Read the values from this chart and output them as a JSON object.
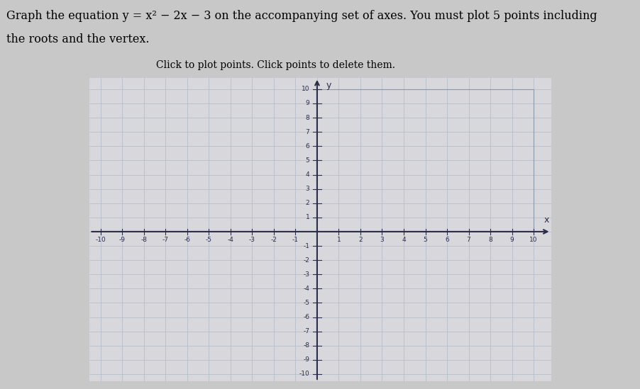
{
  "title_line1": "Graph the equation y = x² − 2x − 3 on the accompanying set of axes. You must plot 5 points including",
  "title_line2": "the roots and the vertex.",
  "subtitle": "Click to plot points. Click points to delete them.",
  "xlabel": "x",
  "ylabel": "y",
  "xlim": [
    -10.5,
    10.8
  ],
  "ylim": [
    -10.5,
    10.8
  ],
  "xticks": [
    -10,
    -9,
    -8,
    -7,
    -6,
    -5,
    -4,
    -3,
    -2,
    -1,
    1,
    2,
    3,
    4,
    5,
    6,
    7,
    8,
    9,
    10
  ],
  "yticks": [
    -10,
    -9,
    -8,
    -7,
    -6,
    -5,
    -4,
    -3,
    -2,
    -1,
    1,
    2,
    3,
    4,
    5,
    6,
    7,
    8,
    9,
    10
  ],
  "grid_color": "#b0b8c8",
  "axis_color": "#2b2b4b",
  "background_color": "#c8c8c8",
  "plot_bg_color": "#d8d8dc",
  "box_color": "#8899aa",
  "tick_label_fontsize": 6.5,
  "title_fontsize": 11.5,
  "subtitle_fontsize": 10
}
